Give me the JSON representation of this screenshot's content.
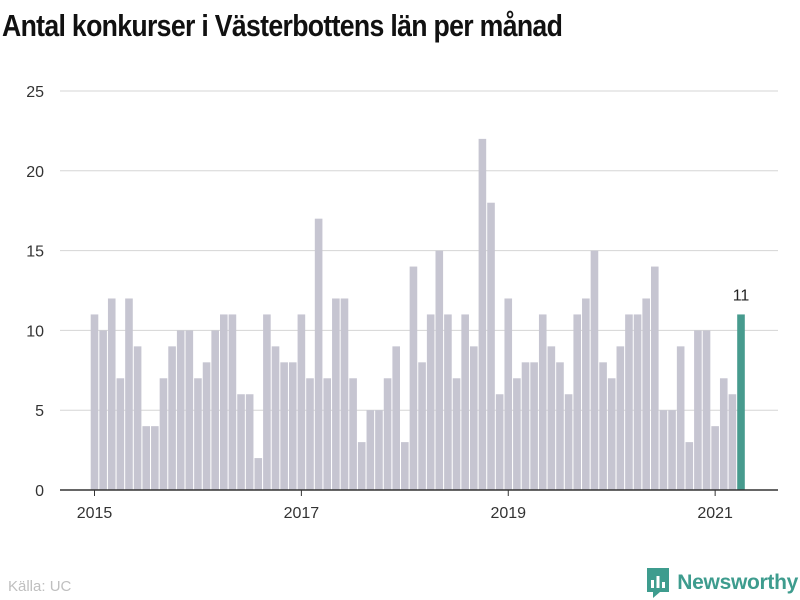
{
  "title": "Antal konkurser i Västerbottens län per månad",
  "source": "Källa: UC",
  "brand": {
    "name": "Newsworthy",
    "icon": "newsworthy-logo-icon",
    "color": "#3e9c8e"
  },
  "colors": {
    "bar": "#c6c5d1",
    "highlight": "#479b8e",
    "grid": "#d5d5d5",
    "axis": "#333333",
    "tick_text": "#333333"
  },
  "chart_data": {
    "type": "bar",
    "title": "Antal konkurser i Västerbottens län per månad",
    "xlabel": "",
    "ylabel": "",
    "ylim": [
      0,
      25
    ],
    "y_ticks": [
      0,
      5,
      10,
      15,
      20,
      25
    ],
    "x_tick_labels": [
      "2015",
      "2017",
      "2019",
      "2021"
    ],
    "start_month": "2015-01",
    "grid": true,
    "highlight_label": "11",
    "values": [
      11,
      10,
      12,
      7,
      12,
      9,
      4,
      4,
      7,
      9,
      10,
      10,
      7,
      8,
      10,
      11,
      11,
      6,
      6,
      2,
      11,
      9,
      8,
      8,
      11,
      7,
      17,
      7,
      12,
      12,
      7,
      3,
      5,
      5,
      7,
      9,
      3,
      14,
      8,
      11,
      15,
      11,
      7,
      11,
      9,
      22,
      18,
      6,
      12,
      7,
      8,
      8,
      11,
      9,
      8,
      6,
      11,
      12,
      15,
      8,
      7,
      9,
      11,
      11,
      12,
      14,
      5,
      5,
      9,
      3,
      10,
      10,
      4,
      7,
      6,
      11
    ]
  }
}
